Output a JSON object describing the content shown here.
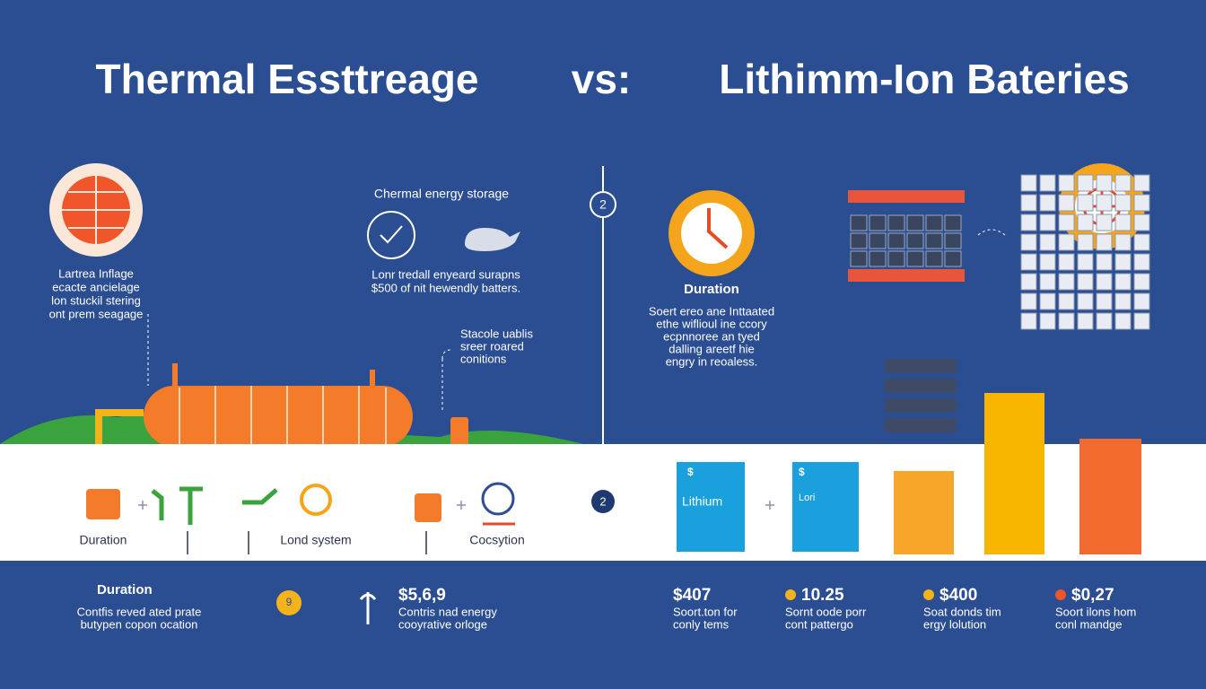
{
  "header": {
    "title_left": "Thermal Essttreage",
    "vs": "vs:",
    "title_right": "Lithimm-Ion Bateries"
  },
  "thermal": {
    "label_lines": [
      "Lartrea Inflage",
      "ecacte ancielage",
      "lon stuckil stering",
      "ont prem seagage"
    ],
    "heading": "Chermal energy storage",
    "desc_lines": [
      "Lonr tredall enyeard surapns",
      "$500 of nit hewendly batters."
    ],
    "note_lines": [
      "Stacole uablis",
      "sreer roared",
      "conitions"
    ]
  },
  "divider_badge": "2",
  "lithium": {
    "heading": "Duration",
    "desc_lines": [
      "Soert ereo ane Inttaated",
      "ethe wiflioul ine ccory",
      "ecpnnoree an tyed",
      "dalling areetf hie",
      "engry in reoaless."
    ]
  },
  "strip": {
    "labels": [
      "Duration",
      "Lond system",
      "Cocsytion"
    ],
    "badge": "2",
    "battery_left": {
      "symbol": "$",
      "label": "Lithium"
    },
    "battery_right": {
      "symbol": "$",
      "label": "Lori"
    }
  },
  "footer": {
    "left": {
      "heading": "Duration",
      "lines": [
        "Contfis reved ated prate",
        "butypen copon ocation"
      ]
    },
    "badge": "9",
    "mid": {
      "value": "$5,6,9",
      "lines": [
        "Contris nad energy",
        "cooyrative orloge"
      ]
    },
    "stats": [
      {
        "value": "$407",
        "lines": [
          "Soort.ton for",
          "conly tems"
        ]
      },
      {
        "value": "10.25",
        "lines": [
          "Sornt oode porr",
          "cont pattergo"
        ]
      },
      {
        "value": "$400",
        "lines": [
          "Soat donds tim",
          "ergy lolution"
        ]
      },
      {
        "value": "$0,27",
        "lines": [
          "Soort ilons hom",
          "conl mandge"
        ]
      }
    ]
  }
}
